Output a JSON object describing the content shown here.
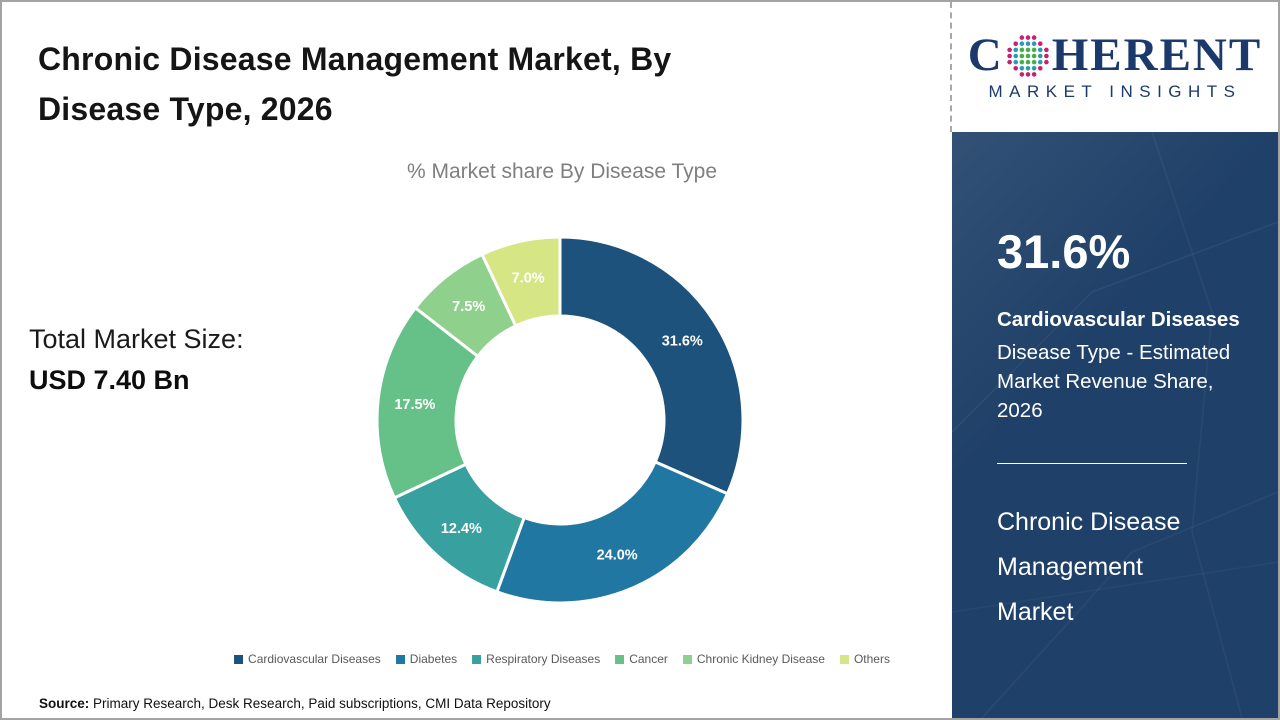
{
  "page": {
    "title": "Chronic Disease Management Market, By Disease Type, 2026",
    "subtitle": "% Market share By Disease Type",
    "total_market_size_label": "Total Market Size:",
    "total_market_size_value": "USD 7.40 Bn",
    "source_label": "Source:",
    "source_text": " Primary Research, Desk Research, Paid subscriptions, CMI Data Repository"
  },
  "chart_data": {
    "type": "pie",
    "subtype": "donut",
    "title": "% Market share By Disease Type",
    "categories": [
      "Cardiovascular Diseases",
      "Diabetes",
      "Respiratory Diseases",
      "Cancer",
      "Chronic Kidney Disease",
      "Others"
    ],
    "values": [
      31.6,
      24.0,
      12.4,
      17.5,
      7.5,
      7.0
    ],
    "labels": [
      "31.6%",
      "24.0%",
      "12.4%",
      "17.5%",
      "7.5%",
      "7.0%"
    ],
    "colors": [
      "#1D527C",
      "#2077A2",
      "#39A0A0",
      "#66C189",
      "#90D08D",
      "#D6E685"
    ],
    "start_angle_deg": 0,
    "direction": "clockwise",
    "legend_position": "bottom",
    "label_color": "#ffffff"
  },
  "sidebar": {
    "logo": {
      "word_start": "C",
      "word_end": "HERENT",
      "tagline": "MARKET INSIGHTS",
      "text_color": "#1b3a6b",
      "globe_colors": {
        "inner": "#44ae4c",
        "middle": "#2a9bb5",
        "outer": "#c52270"
      }
    },
    "panel_color": "#1f4068",
    "highlight_value": "31.6%",
    "highlight_title": "Cardiovascular Diseases",
    "highlight_desc": "Disease Type - Estimated Market Revenue Share, 2026",
    "market_name": "Chronic Disease Management Market"
  }
}
